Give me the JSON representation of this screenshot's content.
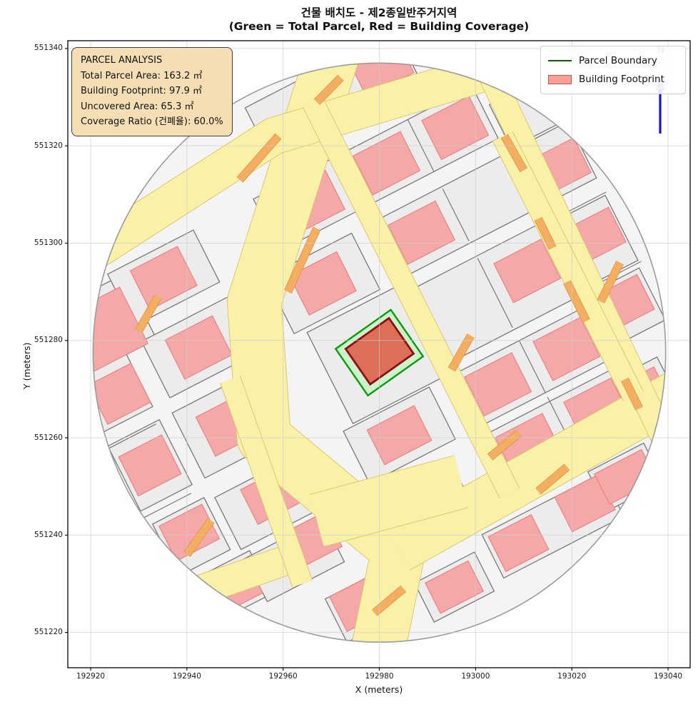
{
  "chart_data": {
    "type": "map",
    "title": "건물 배치도 - 제2종일반주거지역",
    "subtitle": "(Green = Total Parcel, Red = Building Coverage)",
    "xlabel": "X (meters)",
    "ylabel": "Y (meters)",
    "x_ticks": [
      192920,
      192940,
      192960,
      192980,
      193000,
      193020,
      193040
    ],
    "x_tick_labels": [
      "192920",
      "192940",
      "192960",
      "192980",
      "193000",
      "193020",
      "193040"
    ],
    "y_ticks": [
      551340,
      551320,
      551300,
      551280,
      551260,
      551240,
      551220
    ],
    "y_tick_labels": [
      "551340",
      "551320",
      "551300",
      "551280",
      "551260",
      "551240",
      "551220"
    ],
    "x_range": [
      192915.25,
      193044.6
    ],
    "y_range": [
      551212.75,
      551341.6
    ],
    "grid": true,
    "legend_position": "upper right",
    "legend": [
      {
        "label": "Parcel Boundary",
        "type": "line",
        "color": "#006400"
      },
      {
        "label": "Building Footprint",
        "type": "patch",
        "color": "#fa8c8c"
      }
    ],
    "north_label": "N",
    "annotation_box": {
      "line1": "PARCEL ANALYSIS",
      "line2": "Total Parcel Area: 163.2 ㎡",
      "line3": "Building Footprint: 97.9 ㎡",
      "line4": "Uncovered Area: 65.3 ㎡",
      "line5": "Coverage Ratio (건폐율): 60.0%"
    },
    "parcel_stats": {
      "total_parcel_area_m2": 163.2,
      "building_footprint_m2": 97.9,
      "uncovered_area_m2": 65.3,
      "coverage_ratio_pct": 60.0
    },
    "map": {
      "origin": [
        192980,
        551277.5
      ],
      "frame_angle_deg": 27,
      "circle": {
        "center": [
          192980,
          551277.5
        ],
        "radius_m": 59.5
      },
      "colors": {
        "circle_fill": "#f4f4f4",
        "circle_edge": "#9c9c9c",
        "block_fill": "#ececec",
        "block_edge": "#787878",
        "building_fill": "#f5a8a8",
        "building_edge": "#ec8282",
        "road_fill": "#faf1a8",
        "road_edge": "#dcc76e",
        "strip_fill": "#f4ae62",
        "strip_edge": "#e2913c",
        "parcel_fill": "#ccf3cc",
        "parcel_edge": "#0a9b0a",
        "central_fill": "#dc6e5a",
        "central_edge": "#8b1010",
        "grid": "#cccccc",
        "north_shaft": "#1515e0",
        "north_head": "#9a9ae0"
      },
      "blocks": [
        [
          -49,
          31,
          18,
          15
        ],
        [
          -33,
          34,
          20,
          12
        ],
        [
          0,
          34,
          18,
          12
        ],
        [
          27,
          34,
          30,
          12
        ],
        [
          20,
          51,
          26,
          11
        ],
        [
          4,
          53,
          12,
          9
        ],
        [
          -53,
          18,
          12,
          13
        ],
        [
          -33,
          18,
          20,
          13
        ],
        [
          -4,
          18,
          20,
          13
        ],
        [
          27,
          18,
          30,
          13
        ],
        [
          50,
          18,
          13,
          13
        ],
        [
          -53,
          1,
          12,
          15
        ],
        [
          -34,
          1,
          20,
          15
        ],
        [
          0,
          0,
          23,
          21
        ],
        [
          27,
          0,
          30,
          17
        ],
        [
          50,
          0,
          13,
          15
        ],
        [
          -52,
          -16,
          12,
          12
        ],
        [
          -34,
          -17,
          20,
          12
        ],
        [
          -4,
          -17,
          20,
          12
        ],
        [
          27,
          -17,
          30,
          12
        ],
        [
          50,
          -15,
          12,
          12
        ],
        [
          -49,
          -29,
          13,
          10
        ],
        [
          -35,
          -30,
          18,
          10
        ],
        [
          -6,
          -31,
          18,
          10
        ],
        [
          27,
          -30,
          30,
          10
        ],
        [
          45,
          -32,
          12,
          10
        ],
        [
          -26,
          -45,
          14,
          10
        ],
        [
          -8,
          -50,
          14,
          9
        ],
        [
          16,
          -48,
          28,
          10
        ],
        [
          34,
          -46,
          13,
          9
        ],
        [
          49,
          30,
          11,
          10
        ]
      ],
      "buildings": [
        [
          -49,
          30,
          14,
          13
        ],
        [
          -52,
          17,
          10,
          9
        ],
        [
          -53,
          1,
          10,
          9
        ],
        [
          -52,
          -15,
          10,
          8
        ],
        [
          -49,
          -29,
          10,
          8
        ],
        [
          -33,
          34,
          11,
          9
        ],
        [
          -33,
          18,
          11,
          9
        ],
        [
          -34,
          1,
          12,
          9
        ],
        [
          -33,
          -16,
          11,
          8
        ],
        [
          -30,
          -28,
          10,
          8
        ],
        [
          2,
          34,
          10,
          9
        ],
        [
          -4,
          18,
          11,
          9
        ],
        [
          -4,
          -17,
          11,
          8
        ],
        [
          -6,
          -31,
          10,
          8
        ],
        [
          19,
          34,
          11,
          9
        ],
        [
          35,
          34,
          11,
          9
        ],
        [
          19,
          18,
          11,
          9
        ],
        [
          35,
          1,
          11,
          9
        ],
        [
          19,
          -17,
          11,
          9
        ],
        [
          35,
          -17,
          11,
          9
        ],
        [
          19,
          -30,
          11,
          7
        ],
        [
          35,
          -30,
          11,
          7
        ],
        [
          51,
          17,
          10,
          8
        ],
        [
          51,
          1,
          10,
          8
        ],
        [
          50,
          -14,
          10,
          8
        ],
        [
          45,
          -32,
          9,
          7
        ],
        [
          13,
          52,
          9,
          7
        ],
        [
          27,
          52,
          11,
          8
        ],
        [
          -27,
          -44,
          10,
          8
        ],
        [
          -8,
          -50,
          10,
          7
        ],
        [
          8,
          -48,
          10,
          8
        ],
        [
          24,
          -47,
          10,
          8
        ],
        [
          34,
          -46,
          11,
          7
        ]
      ],
      "dividers": [
        [
          27,
          -36,
          27,
          -24
        ],
        [
          27,
          -23,
          27,
          -11
        ],
        [
          27,
          -8,
          27,
          8
        ],
        [
          27,
          12,
          27,
          24
        ],
        [
          27,
          28,
          27,
          40
        ],
        [
          -60,
          8,
          -48,
          8
        ],
        [
          -60,
          -8,
          -48,
          -8
        ],
        [
          44,
          8,
          57,
          8
        ],
        [
          44,
          -8,
          57,
          -8
        ]
      ],
      "roads": [
        {
          "pts": [
            [
              192971,
              551341
            ],
            [
              192954,
              551288
            ],
            [
              192956,
              551260
            ],
            [
              192984,
              551237
            ],
            [
              192979,
              551213
            ]
          ],
          "w": 11
        },
        {
          "pts": [
            [
              192984,
              551237
            ],
            [
              193047,
              551272
            ]
          ],
          "w": 9.5
        },
        {
          "pts": [
            [
              192967,
              551243
            ],
            [
              192997,
              551251
            ]
          ],
          "w": 11
        },
        {
          "pts": [
            [
              192914,
              551294
            ],
            [
              192958,
              551322
            ],
            [
              193012,
              551338
            ]
          ],
          "w": 7.5
        },
        {
          "pts": [
            [
              193001,
              551339
            ],
            [
              193040,
              551258
            ]
          ],
          "w": 5
        },
        {
          "pts": [
            [
              192932,
              551225
            ],
            [
              192964,
              551236
            ]
          ],
          "w": 6
        },
        {
          "pts": [
            [
              192949,
              551272
            ],
            [
              192964,
              551230
            ]
          ],
          "w": 4.2
        }
      ],
      "frame_roads": [
        {
          "u": 11,
          "v0": -38,
          "v1": 52,
          "w": 4.4
        },
        {
          "u": 43,
          "v0": -32,
          "v1": 28,
          "w": 4.4
        }
      ],
      "orange_strips": [
        [
          [
            192951,
            551313
          ],
          [
            192959,
            551322
          ]
        ],
        [
          [
            192967,
            551329
          ],
          [
            192972,
            551334
          ]
        ],
        [
          [
            192961,
            551290
          ],
          [
            192967,
            551303
          ]
        ],
        [
          [
            192930,
            551282
          ],
          [
            192934,
            551289
          ]
        ],
        [
          [
            193003,
            551256
          ],
          [
            193009,
            551261
          ]
        ],
        [
          [
            193013,
            551249
          ],
          [
            193019,
            551254
          ]
        ],
        [
          [
            193026,
            551288
          ],
          [
            193030,
            551296
          ]
        ],
        [
          [
            193021,
            551321
          ],
          [
            193026,
            551328
          ]
        ],
        [
          [
            192979,
            551224
          ],
          [
            192985,
            551229
          ]
        ],
        [
          [
            192995,
            551274
          ],
          [
            192999,
            551281
          ]
        ],
        [
          [
            192940,
            551236
          ],
          [
            192945,
            551243
          ]
        ],
        [
          [
            193006,
            551322
          ],
          [
            193010,
            551315
          ]
        ],
        [
          [
            193013,
            551305
          ],
          [
            193016,
            551299
          ]
        ],
        [
          [
            193019,
            551292
          ],
          [
            193023,
            551284
          ]
        ],
        [
          [
            193031,
            551272
          ],
          [
            193034,
            551266
          ]
        ]
      ],
      "strip_w": 1.5,
      "green_parcel": {
        "u": 0,
        "v": 0,
        "w": 14,
        "h": 11.7,
        "rot": 35
      },
      "red_building": {
        "u": 0.2,
        "v": 0.2,
        "w": 11,
        "h": 8.9,
        "rot": 35
      }
    }
  }
}
